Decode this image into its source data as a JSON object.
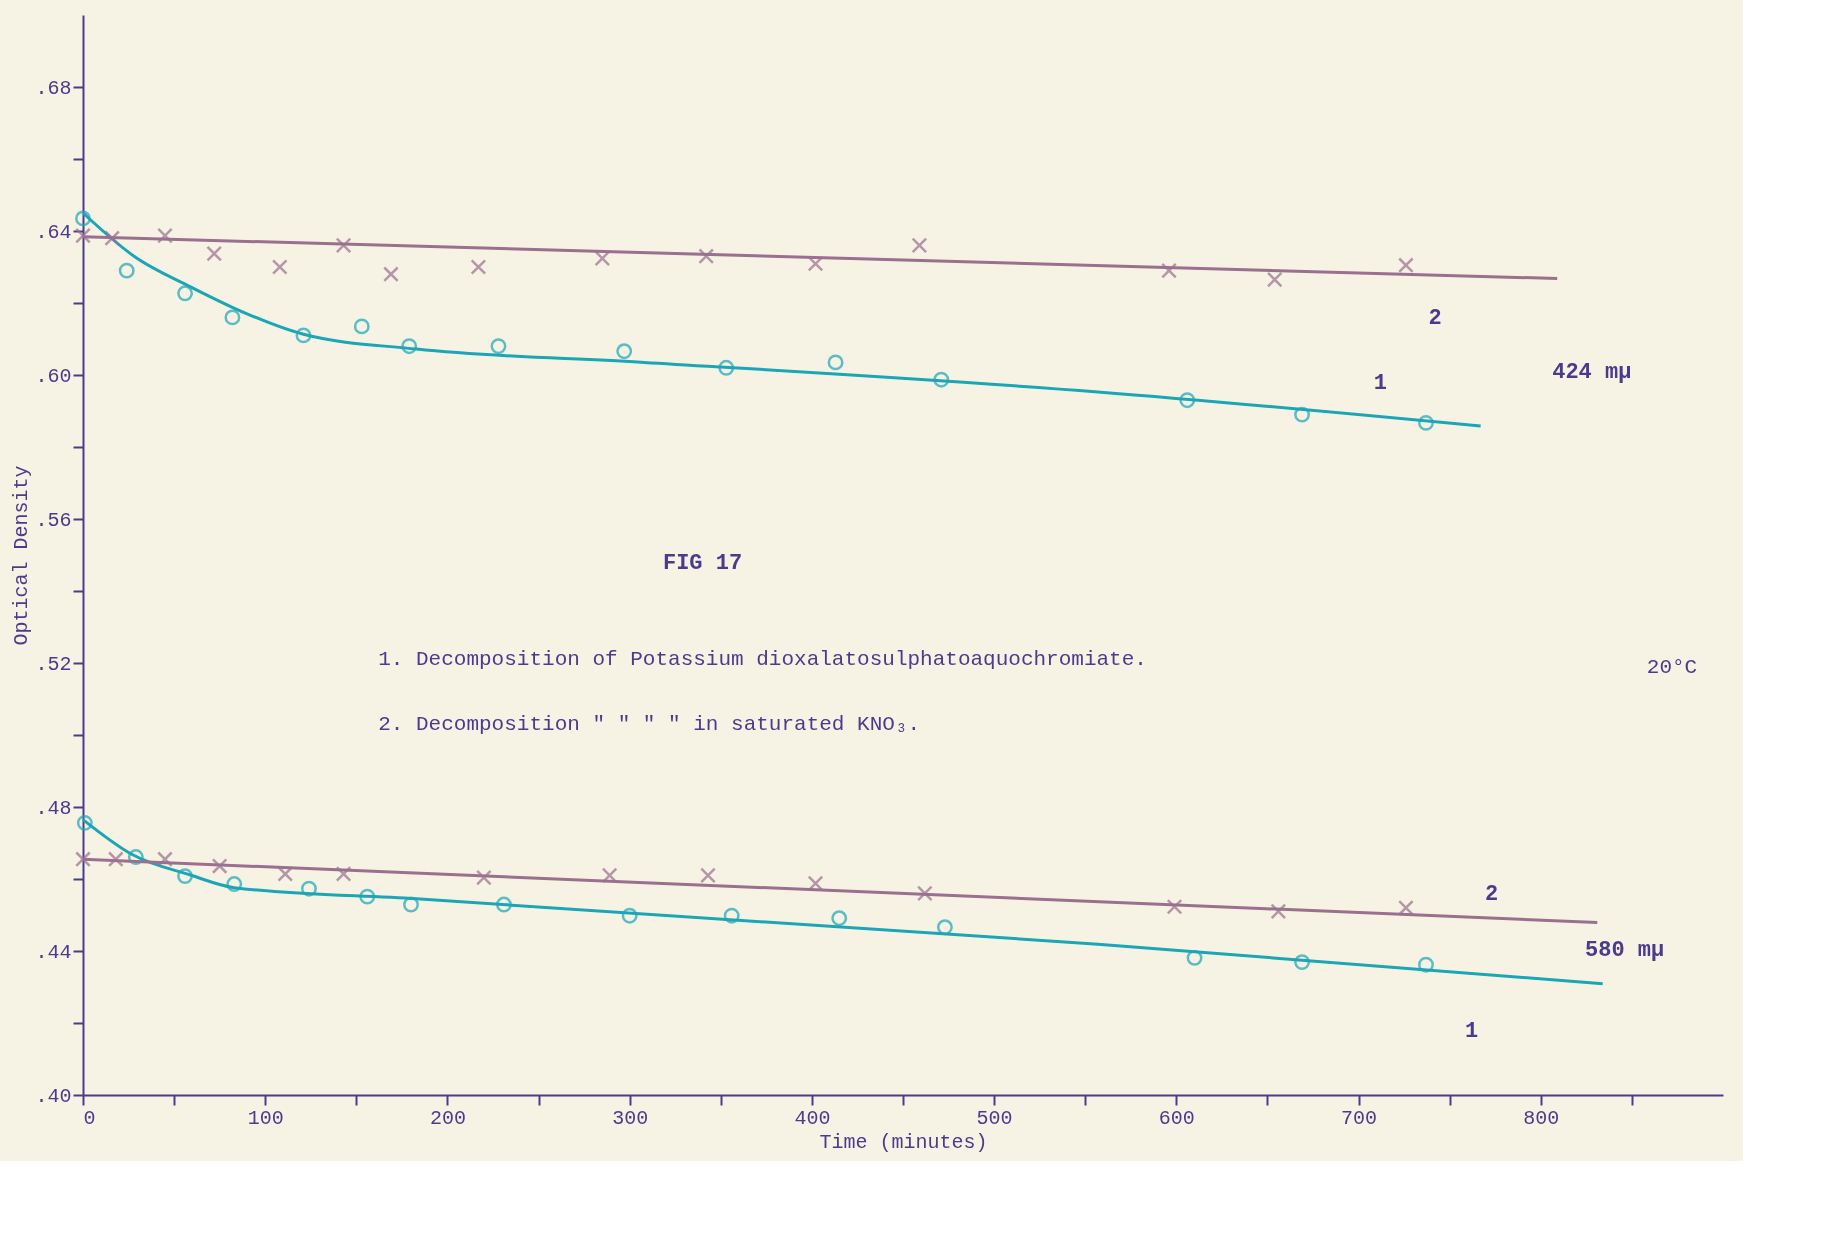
{
  "chart_data": {
    "type": "scatter",
    "xlabel": "Time (minutes)",
    "ylabel": "Optical Density",
    "xlim": [
      0,
      900
    ],
    "ylim": [
      0.4,
      0.7
    ],
    "xticks": [
      0,
      {
        "value": 50,
        "label": null
      },
      100,
      {
        "value": 150,
        "label": null
      },
      200,
      {
        "value": 250,
        "label": null
      },
      300,
      {
        "value": 350,
        "label": null
      },
      400,
      {
        "value": 450,
        "label": null
      },
      500,
      {
        "value": 550,
        "label": null
      },
      600,
      {
        "value": 650,
        "label": null
      },
      700,
      {
        "value": 750,
        "label": null
      },
      800,
      {
        "value": 850,
        "label": null
      }
    ],
    "yticks": [
      {
        "value": 0.4,
        "label": ".40"
      },
      {
        "value": 0.42,
        "label": null
      },
      {
        "value": 0.44,
        "label": ".44"
      },
      {
        "value": 0.46,
        "label": null
      },
      {
        "value": 0.48,
        "label": ".48"
      },
      {
        "value": 0.5,
        "label": null
      },
      {
        "value": 0.52,
        "label": ".52"
      },
      {
        "value": 0.54,
        "label": null
      },
      {
        "value": 0.56,
        "label": ".56"
      },
      {
        "value": 0.58,
        "label": null
      },
      {
        "value": 0.6,
        "label": ".60"
      },
      {
        "value": 0.62,
        "label": null
      },
      {
        "value": 0.64,
        "label": ".64"
      },
      {
        "value": 0.66,
        "label": null
      },
      {
        "value": 0.68,
        "label": ".68"
      }
    ],
    "grid": false,
    "series": [
      {
        "marker": "circle",
        "color": "#1aa6b7",
        "x": [
          0,
          24,
          56,
          82,
          121,
          153,
          179,
          228,
          297,
          353,
          413,
          471,
          606,
          669,
          737
        ],
        "values": [
          0.6435,
          0.629,
          0.6227,
          0.616,
          0.611,
          0.6135,
          0.608,
          0.608,
          0.6066,
          0.602,
          0.6035,
          0.5987,
          0.593,
          0.589,
          0.5867
        ]
      },
      {
        "type": "line",
        "line_style": "solid",
        "color": "#1aa6b7",
        "x": [
          0,
          28,
          59,
          90,
          121,
          183,
          308,
          557,
          767
        ],
        "values": [
          0.645,
          0.633,
          0.6245,
          0.617,
          0.6113,
          0.6072,
          0.6035,
          0.5953,
          0.5858
        ]
      },
      {
        "marker": "cross",
        "color": "#9a6f8f",
        "x": [
          0,
          16,
          45,
          72,
          108,
          143,
          169,
          217,
          285,
          342,
          402,
          459,
          596,
          654,
          726
        ],
        "values": [
          0.6387,
          0.638,
          0.6387,
          0.6337,
          0.63,
          0.636,
          0.628,
          0.63,
          0.6324,
          0.633,
          0.6309,
          0.636,
          0.629,
          0.6265,
          0.6305
        ]
      },
      {
        "type": "line",
        "line_style": "solid",
        "color": "#9a6f8f",
        "x": [
          0,
          809
        ],
        "values": [
          0.6384,
          0.6268
        ]
      },
      {
        "marker": "circle",
        "color": "#1aa6b7",
        "x": [
          1,
          29,
          56,
          83,
          124,
          156,
          180,
          231,
          300,
          356,
          415,
          473,
          610,
          669,
          737
        ],
        "values": [
          0.4756,
          0.4661,
          0.4608,
          0.4586,
          0.4573,
          0.4551,
          0.4529,
          0.4529,
          0.4498,
          0.4498,
          0.4491,
          0.4466,
          0.4381,
          0.4369,
          0.4362
        ]
      },
      {
        "type": "line",
        "line_style": "solid",
        "color": "#1aa6b7",
        "x": [
          0,
          27,
          59,
          83,
          183,
          557,
          834
        ],
        "values": [
          0.4765,
          0.4668,
          0.4611,
          0.4576,
          0.4545,
          0.4419,
          0.4309
        ]
      },
      {
        "marker": "cross",
        "color": "#9a6f8f",
        "x": [
          0,
          18,
          45,
          75,
          111,
          143,
          220,
          289,
          343,
          402,
          462,
          599,
          656,
          726
        ],
        "values": [
          0.4655,
          0.4655,
          0.4655,
          0.4636,
          0.4614,
          0.4614,
          0.4604,
          0.461,
          0.461,
          0.4588,
          0.456,
          0.4523,
          0.451,
          0.452
        ]
      },
      {
        "type": "line",
        "line_style": "solid",
        "color": "#9a6f8f",
        "x": [
          0,
          831
        ],
        "values": [
          0.4655,
          0.4479
        ]
      }
    ],
    "annotations": [
      "2",
      "1",
      "424 mµ",
      "2",
      "580 mµ",
      "1",
      "FIG 17",
      "1.  Decomposition of Potassium dioxalatosulphatoaquochromiate.",
      "2.  Decomposition  \"       \"          \"    \"   in saturated KNO₃.",
      "20°C"
    ]
  }
}
